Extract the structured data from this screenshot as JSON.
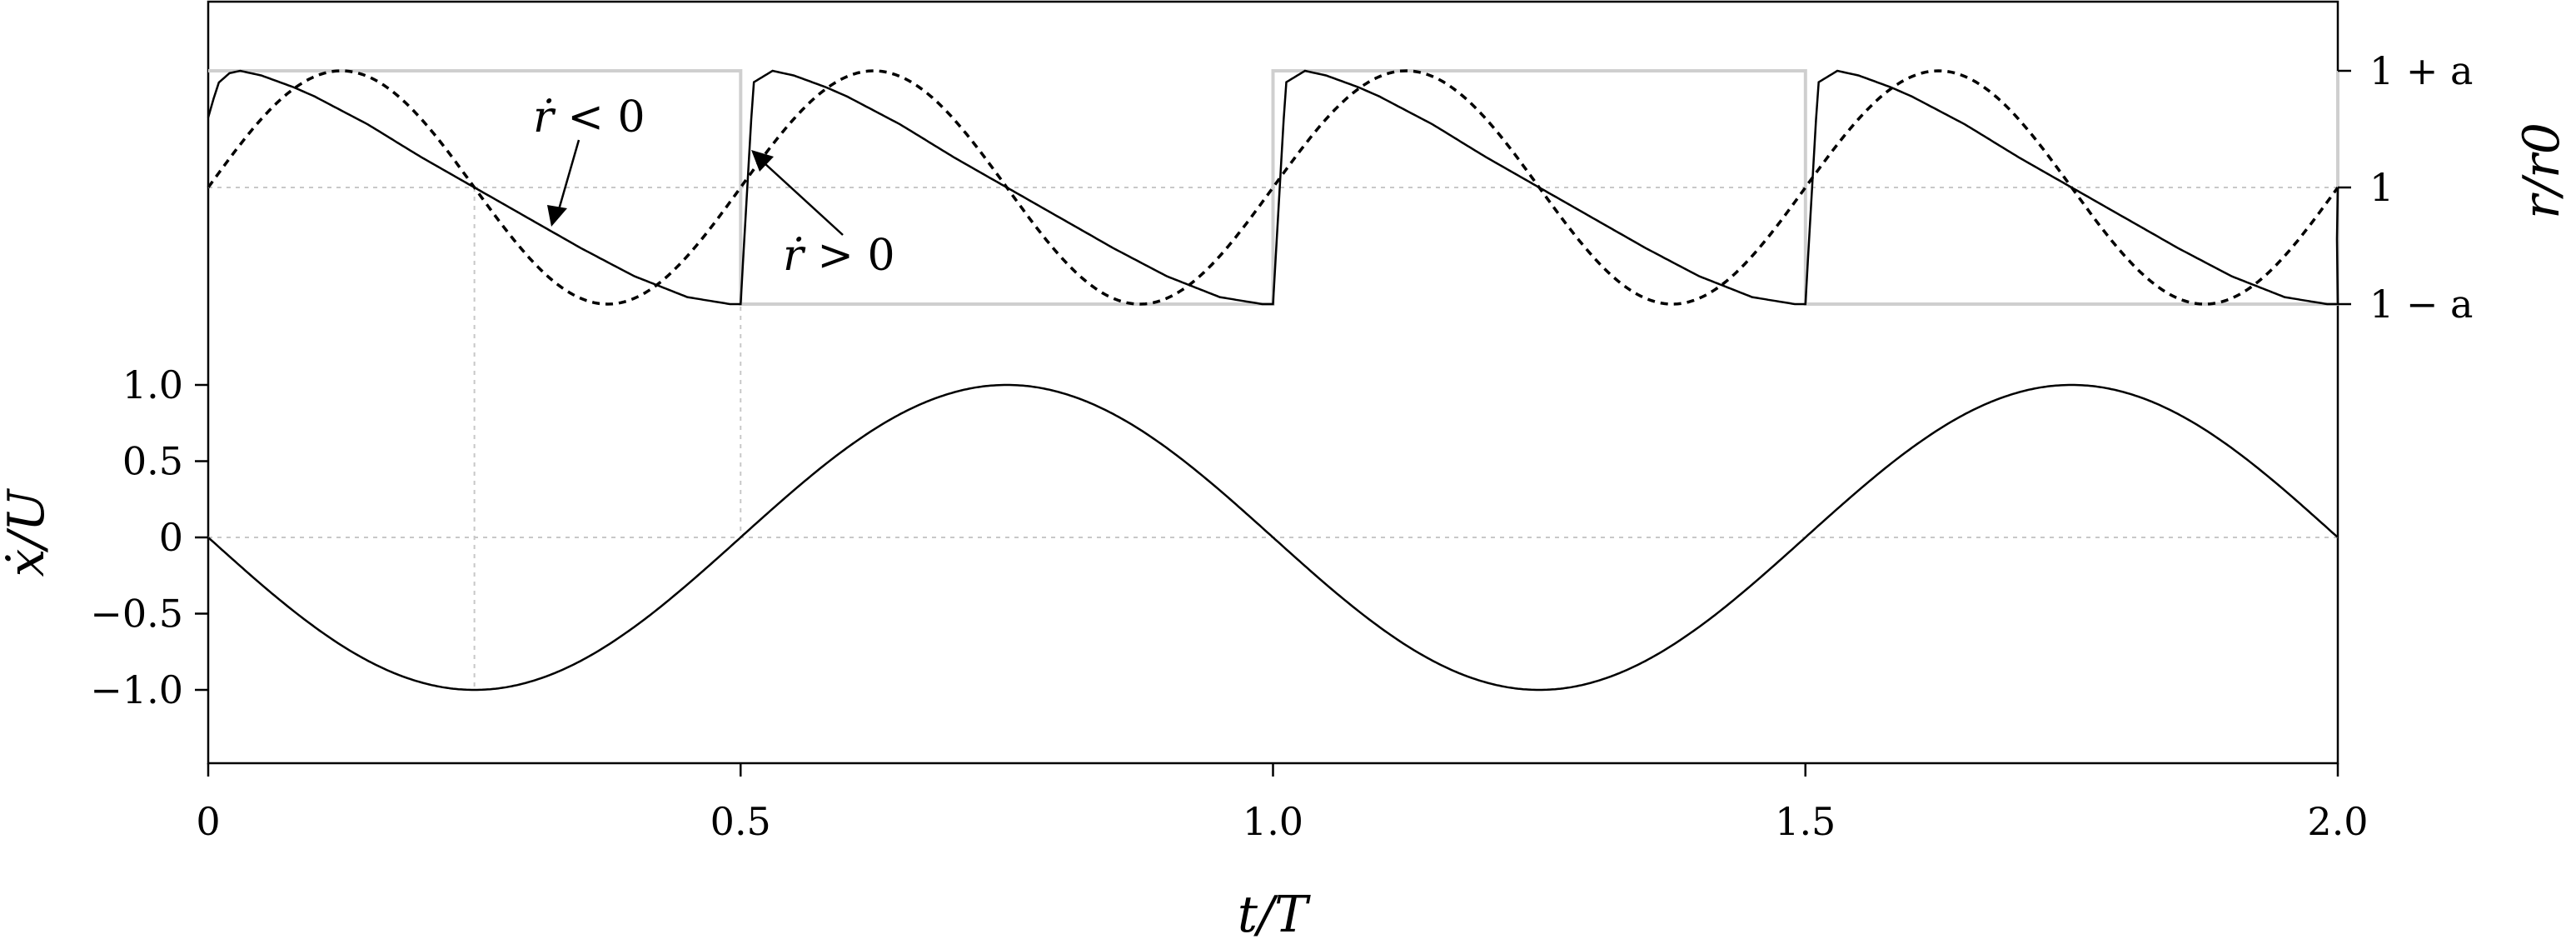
{
  "chart_data": {
    "type": "line",
    "xlabel": "t/T",
    "x_ticks": [
      "0",
      "0.5",
      "1.0",
      "1.5",
      "2.0"
    ],
    "x_tick_values": [
      0,
      0.5,
      1.0,
      1.5,
      2.0
    ],
    "xlim": [
      0,
      2.0
    ],
    "grid": "dotted reference lines at t/T = 0.25 and 0.5, at xdot/U = 0 and r/r0 = 1",
    "panels": [
      {
        "name": "top",
        "right_ylabel": "r/r0",
        "right_ticks": [
          "1 + a",
          "1",
          "1 − a"
        ],
        "right_tick_values": [
          1.5,
          1.0,
          0.5
        ],
        "a": 0.5,
        "series": [
          {
            "style": "solid black",
            "x": [
              0,
              0.005,
              0.01,
              0.02,
              0.03,
              0.05,
              0.08,
              0.1,
              0.125,
              0.15,
              0.2,
              0.25,
              0.3,
              0.35,
              0.4,
              0.45,
              0.49,
              0.5
            ],
            "y": [
              1.3,
              1.38,
              1.45,
              1.49,
              1.5,
              1.48,
              1.43,
              1.39,
              1.33,
              1.27,
              1.13,
              1.0,
              0.87,
              0.74,
              0.62,
              0.53,
              0.5,
              1.0
            ]
          },
          {
            "style": "dotted black",
            "x": [
              0,
              0.0625,
              0.125,
              0.1875,
              0.25,
              0.3125,
              0.375,
              0.4375,
              0.5
            ],
            "y": [
              1.0,
              1.354,
              1.5,
              1.354,
              1.0,
              0.646,
              0.5,
              0.646,
              1.0
            ]
          },
          {
            "style": "solid light grey (square wave)",
            "x": [
              0,
              0.5,
              0.5,
              1.0,
              1.0,
              1.5,
              1.5,
              2.0,
              2.0
            ],
            "y": [
              1.5,
              1.5,
              0.5,
              0.5,
              1.5,
              1.5,
              0.5,
              0.5,
              1.5
            ]
          }
        ],
        "annotations": [
          {
            "text_italic": "ṙ",
            "text_rest": " < 0",
            "at_x": 0.32,
            "at_y": 0.82
          },
          {
            "text_italic": "ṙ",
            "text_rest": " > 0",
            "at_x": 0.51,
            "at_y": 1.15
          }
        ]
      },
      {
        "name": "bottom",
        "ylabel": "ẋ/U",
        "y_ticks": [
          "1.0",
          "0.5",
          "0",
          "−0.5",
          "−1.0"
        ],
        "y_tick_values": [
          1.0,
          0.5,
          0,
          -0.5,
          -1.0
        ],
        "ylim": [
          -1.5,
          1.0
        ],
        "series": [
          {
            "style": "solid black",
            "x": [
              0,
              0.25,
              0.5,
              0.75,
              1.0,
              1.25,
              1.5,
              1.75,
              2.0
            ],
            "y": [
              0,
              -1.0,
              0,
              1.0,
              0,
              -1.0,
              0,
              1.0,
              0
            ]
          }
        ]
      }
    ]
  }
}
